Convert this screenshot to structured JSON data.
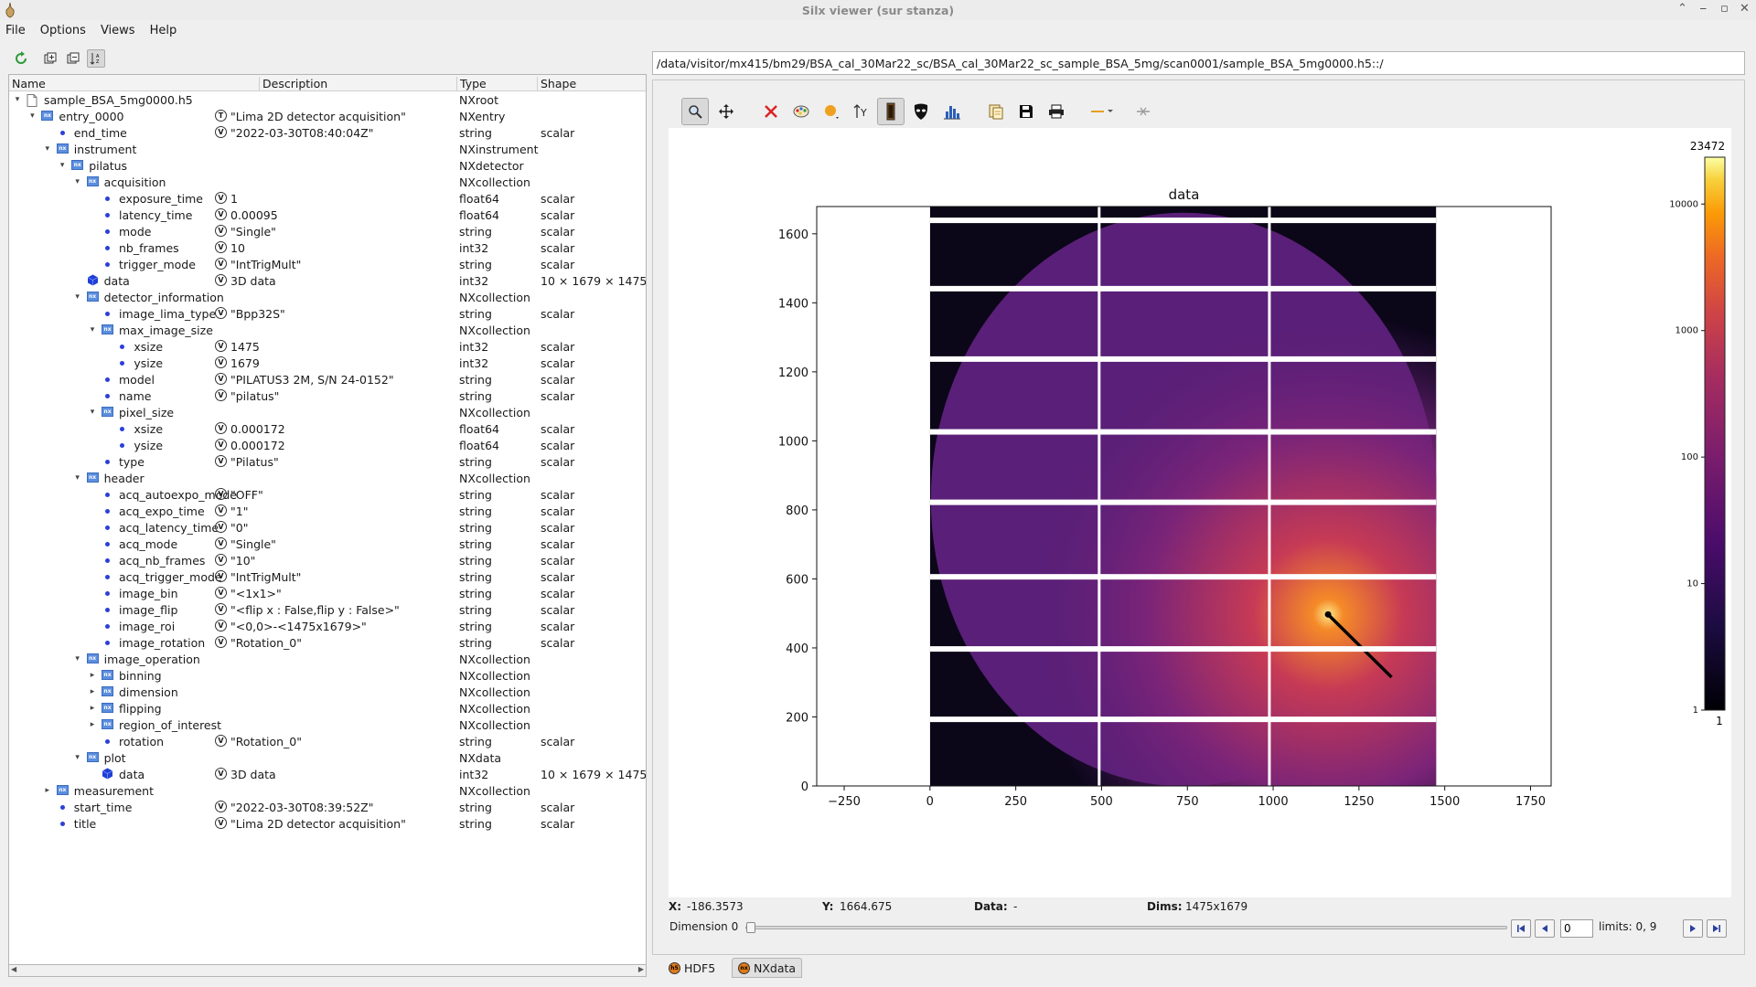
{
  "window": {
    "title": "Silx viewer (sur stanza)"
  },
  "menu": [
    "File",
    "Options",
    "Views",
    "Help"
  ],
  "left_toolbar": [
    "refresh-icon",
    "expand-all-icon",
    "collapse-all-icon",
    "sort-icon"
  ],
  "tree": {
    "columns": {
      "name": "Name",
      "description": "Description",
      "type": "Type",
      "shape": "Shape"
    },
    "rows": [
      {
        "depth": 0,
        "arrow": "down",
        "icon": "file",
        "name": "sample_BSA_5mg0000.h5",
        "marker": "",
        "desc": "",
        "type": "NXroot",
        "shape": ""
      },
      {
        "depth": 1,
        "arrow": "down",
        "icon": "nx",
        "name": "entry_0000",
        "marker": "T",
        "desc": "\"Lima 2D detector acquisition\"",
        "type": "NXentry",
        "shape": ""
      },
      {
        "depth": 2,
        "arrow": "",
        "icon": "dot",
        "name": "end_time",
        "marker": "V",
        "desc": "\"2022-03-30T08:40:04Z\"",
        "type": "string",
        "shape": "scalar"
      },
      {
        "depth": 2,
        "arrow": "down",
        "icon": "nx",
        "name": "instrument",
        "marker": "",
        "desc": "",
        "type": "NXinstrument",
        "shape": ""
      },
      {
        "depth": 3,
        "arrow": "down",
        "icon": "nx",
        "name": "pilatus",
        "marker": "",
        "desc": "",
        "type": "NXdetector",
        "shape": ""
      },
      {
        "depth": 4,
        "arrow": "down",
        "icon": "nx",
        "name": "acquisition",
        "marker": "",
        "desc": "",
        "type": "NXcollection",
        "shape": ""
      },
      {
        "depth": 5,
        "arrow": "",
        "icon": "dot",
        "name": "exposure_time",
        "marker": "V",
        "desc": "1",
        "type": "float64",
        "shape": "scalar"
      },
      {
        "depth": 5,
        "arrow": "",
        "icon": "dot",
        "name": "latency_time",
        "marker": "V",
        "desc": "0.00095",
        "type": "float64",
        "shape": "scalar"
      },
      {
        "depth": 5,
        "arrow": "",
        "icon": "dot",
        "name": "mode",
        "marker": "V",
        "desc": "\"Single\"",
        "type": "string",
        "shape": "scalar"
      },
      {
        "depth": 5,
        "arrow": "",
        "icon": "dot",
        "name": "nb_frames",
        "marker": "V",
        "desc": "10",
        "type": "int32",
        "shape": "scalar"
      },
      {
        "depth": 5,
        "arrow": "",
        "icon": "dot",
        "name": "trigger_mode",
        "marker": "V",
        "desc": "\"IntTrigMult\"",
        "type": "string",
        "shape": "scalar"
      },
      {
        "depth": 4,
        "arrow": "",
        "icon": "cube",
        "name": "data",
        "marker": "V",
        "desc": "3D data",
        "type": "int32",
        "shape": "10 × 1679 × 1475"
      },
      {
        "depth": 4,
        "arrow": "down",
        "icon": "nx",
        "name": "detector_information",
        "marker": "",
        "desc": "",
        "type": "NXcollection",
        "shape": ""
      },
      {
        "depth": 5,
        "arrow": "",
        "icon": "dot",
        "name": "image_lima_type",
        "marker": "V",
        "desc": "\"Bpp32S\"",
        "type": "string",
        "shape": "scalar"
      },
      {
        "depth": 5,
        "arrow": "down",
        "icon": "nx",
        "name": "max_image_size",
        "marker": "",
        "desc": "",
        "type": "NXcollection",
        "shape": ""
      },
      {
        "depth": 6,
        "arrow": "",
        "icon": "dot",
        "name": "xsize",
        "marker": "V",
        "desc": "1475",
        "type": "int32",
        "shape": "scalar"
      },
      {
        "depth": 6,
        "arrow": "",
        "icon": "dot",
        "name": "ysize",
        "marker": "V",
        "desc": "1679",
        "type": "int32",
        "shape": "scalar"
      },
      {
        "depth": 5,
        "arrow": "",
        "icon": "dot",
        "name": "model",
        "marker": "V",
        "desc": "\"PILATUS3 2M, S/N 24-0152\"",
        "type": "string",
        "shape": "scalar"
      },
      {
        "depth": 5,
        "arrow": "",
        "icon": "dot",
        "name": "name",
        "marker": "V",
        "desc": "\"pilatus\"",
        "type": "string",
        "shape": "scalar"
      },
      {
        "depth": 5,
        "arrow": "down",
        "icon": "nx",
        "name": "pixel_size",
        "marker": "",
        "desc": "",
        "type": "NXcollection",
        "shape": ""
      },
      {
        "depth": 6,
        "arrow": "",
        "icon": "dot",
        "name": "xsize",
        "marker": "V",
        "desc": "0.000172",
        "type": "float64",
        "shape": "scalar"
      },
      {
        "depth": 6,
        "arrow": "",
        "icon": "dot",
        "name": "ysize",
        "marker": "V",
        "desc": "0.000172",
        "type": "float64",
        "shape": "scalar"
      },
      {
        "depth": 5,
        "arrow": "",
        "icon": "dot",
        "name": "type",
        "marker": "V",
        "desc": "\"Pilatus\"",
        "type": "string",
        "shape": "scalar"
      },
      {
        "depth": 4,
        "arrow": "down",
        "icon": "nx",
        "name": "header",
        "marker": "",
        "desc": "",
        "type": "NXcollection",
        "shape": ""
      },
      {
        "depth": 5,
        "arrow": "",
        "icon": "dot",
        "name": "acq_autoexpo_mode",
        "marker": "V",
        "desc": "\"OFF\"",
        "type": "string",
        "shape": "scalar"
      },
      {
        "depth": 5,
        "arrow": "",
        "icon": "dot",
        "name": "acq_expo_time",
        "marker": "V",
        "desc": "\"1\"",
        "type": "string",
        "shape": "scalar"
      },
      {
        "depth": 5,
        "arrow": "",
        "icon": "dot",
        "name": "acq_latency_time",
        "marker": "V",
        "desc": "\"0\"",
        "type": "string",
        "shape": "scalar"
      },
      {
        "depth": 5,
        "arrow": "",
        "icon": "dot",
        "name": "acq_mode",
        "marker": "V",
        "desc": "\"Single\"",
        "type": "string",
        "shape": "scalar"
      },
      {
        "depth": 5,
        "arrow": "",
        "icon": "dot",
        "name": "acq_nb_frames",
        "marker": "V",
        "desc": "\"10\"",
        "type": "string",
        "shape": "scalar"
      },
      {
        "depth": 5,
        "arrow": "",
        "icon": "dot",
        "name": "acq_trigger_mode",
        "marker": "V",
        "desc": "\"IntTrigMult\"",
        "type": "string",
        "shape": "scalar"
      },
      {
        "depth": 5,
        "arrow": "",
        "icon": "dot",
        "name": "image_bin",
        "marker": "V",
        "desc": "\"<1x1>\"",
        "type": "string",
        "shape": "scalar"
      },
      {
        "depth": 5,
        "arrow": "",
        "icon": "dot",
        "name": "image_flip",
        "marker": "V",
        "desc": "\"<flip x : False,flip y : False>\"",
        "type": "string",
        "shape": "scalar"
      },
      {
        "depth": 5,
        "arrow": "",
        "icon": "dot",
        "name": "image_roi",
        "marker": "V",
        "desc": "\"<0,0>-<1475x1679>\"",
        "type": "string",
        "shape": "scalar"
      },
      {
        "depth": 5,
        "arrow": "",
        "icon": "dot",
        "name": "image_rotation",
        "marker": "V",
        "desc": "\"Rotation_0\"",
        "type": "string",
        "shape": "scalar"
      },
      {
        "depth": 4,
        "arrow": "down",
        "icon": "nx",
        "name": "image_operation",
        "marker": "",
        "desc": "",
        "type": "NXcollection",
        "shape": ""
      },
      {
        "depth": 5,
        "arrow": "right",
        "icon": "nx",
        "name": "binning",
        "marker": "",
        "desc": "",
        "type": "NXcollection",
        "shape": ""
      },
      {
        "depth": 5,
        "arrow": "right",
        "icon": "nx",
        "name": "dimension",
        "marker": "",
        "desc": "",
        "type": "NXcollection",
        "shape": ""
      },
      {
        "depth": 5,
        "arrow": "right",
        "icon": "nx",
        "name": "flipping",
        "marker": "",
        "desc": "",
        "type": "NXcollection",
        "shape": ""
      },
      {
        "depth": 5,
        "arrow": "right",
        "icon": "nx",
        "name": "region_of_interest",
        "marker": "",
        "desc": "",
        "type": "NXcollection",
        "shape": ""
      },
      {
        "depth": 5,
        "arrow": "",
        "icon": "dot",
        "name": "rotation",
        "marker": "V",
        "desc": "\"Rotation_0\"",
        "type": "string",
        "shape": "scalar"
      },
      {
        "depth": 4,
        "arrow": "down",
        "icon": "nx",
        "name": "plot",
        "marker": "",
        "desc": "",
        "type": "NXdata",
        "shape": ""
      },
      {
        "depth": 5,
        "arrow": "",
        "icon": "cube",
        "name": "data",
        "marker": "V",
        "desc": "3D data",
        "type": "int32",
        "shape": "10 × 1679 × 1475"
      },
      {
        "depth": 2,
        "arrow": "right",
        "icon": "nx",
        "name": "measurement",
        "marker": "",
        "desc": "",
        "type": "NXcollection",
        "shape": ""
      },
      {
        "depth": 2,
        "arrow": "",
        "icon": "dot",
        "name": "start_time",
        "marker": "V",
        "desc": "\"2022-03-30T08:39:52Z\"",
        "type": "string",
        "shape": "scalar"
      },
      {
        "depth": 2,
        "arrow": "",
        "icon": "dot",
        "name": "title",
        "marker": "V",
        "desc": "\"Lima 2D detector acquisition\"",
        "type": "string",
        "shape": "scalar"
      }
    ]
  },
  "path": "/data/visitor/mx415/bm29/BSA_cal_30Mar22_sc/BSA_cal_30Mar22_sc_sample_BSA_5mg/scan0001/sample_BSA_5mg0000.h5::/",
  "plot_toolbar": [
    "zoom-icon",
    "pan-icon",
    "reset-zoom-icon",
    "colormap-icon",
    "marker-icon",
    "y-axis-flip-icon",
    "keep-aspect-icon",
    "mask-icon",
    "histogram-icon",
    "copy-icon",
    "save-icon",
    "print-icon",
    "profile-line-icon",
    "clear-profile-icon"
  ],
  "chart_data": {
    "type": "heatmap",
    "title": "data",
    "xlim": [
      -330,
      1810
    ],
    "ylim": [
      0,
      1679
    ],
    "x_ticks": [
      -250,
      0,
      250,
      500,
      750,
      1000,
      1250,
      1500,
      1750
    ],
    "y_ticks": [
      0,
      200,
      400,
      600,
      800,
      1000,
      1200,
      1400,
      1600
    ],
    "image_size": [
      1475,
      1679
    ],
    "colormap": "inferno",
    "scale": "log",
    "colorbar": {
      "max": "23472",
      "min": "1",
      "ticks": [
        "10000",
        "1000",
        "100",
        "10",
        "1"
      ]
    }
  },
  "status": {
    "x_label": "X:",
    "x_value": "-186.3573",
    "y_label": "Y:",
    "y_value": "1664.675",
    "data_label": "Data:",
    "data_value": "-",
    "dims_label": "Dims:",
    "dims_value": "1475x1679"
  },
  "dimension": {
    "label": "Dimension 0",
    "value": "0",
    "limits": "limits: 0, 9"
  },
  "tabs": [
    {
      "label": "HDF5",
      "selected": false
    },
    {
      "label": "NXdata",
      "selected": true
    }
  ]
}
